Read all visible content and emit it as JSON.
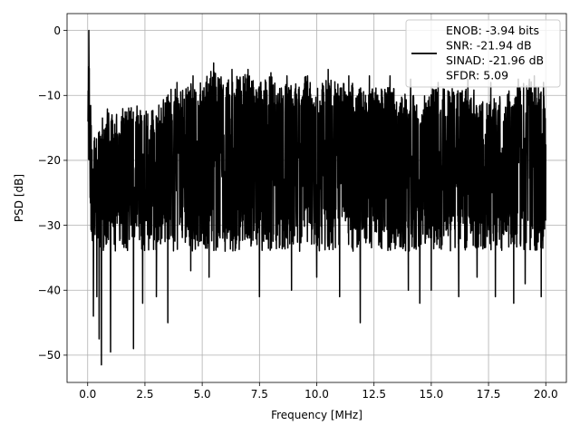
{
  "chart_data": {
    "type": "line",
    "title": "",
    "xlabel": "Frequency [MHz]",
    "ylabel": "PSD [dB]",
    "xlim": [
      -0.9,
      20.9
    ],
    "ylim": [
      -54.2,
      2.6
    ],
    "xticks": [
      0.0,
      2.5,
      5.0,
      7.5,
      10.0,
      12.5,
      15.0,
      17.5,
      20.0
    ],
    "xtick_labels": [
      "0.0",
      "2.5",
      "5.0",
      "7.5",
      "10.0",
      "12.5",
      "15.0",
      "17.5",
      "20.0"
    ],
    "yticks": [
      0,
      -10,
      -20,
      -30,
      -40,
      -50
    ],
    "ytick_labels": [
      "0",
      "−10",
      "−20",
      "−30",
      "−40",
      "−50"
    ],
    "grid": true,
    "legend_position": "top-right",
    "series": [
      {
        "line_color": "#000000",
        "legend_lines": [
          "ENOB: -3.94 bits",
          "SNR: -21.94 dB",
          "SINAD: -21.96 dB",
          "SFDR: 5.09"
        ],
        "x_range": [
          0,
          20
        ],
        "peak": [
          0.05,
          0
        ],
        "x": [
          0.0,
          0.05,
          0.1,
          0.2,
          0.3,
          0.4,
          0.5,
          0.6,
          0.7,
          0.85,
          1.0,
          1.5,
          2.0,
          2.5,
          3.0,
          3.5,
          4.0,
          4.5,
          5.0,
          5.5,
          6.0,
          6.5,
          7.0,
          7.5,
          8.0,
          8.5,
          9.0,
          9.5,
          10.0,
          10.5,
          11.0,
          11.5,
          12.0,
          12.5,
          13.0,
          13.5,
          14.0,
          14.5,
          15.0,
          15.5,
          16.0,
          16.5,
          17.0,
          17.5,
          18.0,
          18.5,
          19.0,
          19.5,
          20.0
        ],
        "upper": [
          -14,
          0,
          -10,
          -13,
          -16,
          -14,
          -15,
          -13,
          -14,
          -12,
          -13,
          -12,
          -11,
          -12,
          -12,
          -9,
          -9,
          -8,
          -7,
          -6,
          -7,
          -7,
          -6,
          -8,
          -7,
          -8,
          -8,
          -7,
          -9,
          -7,
          -8,
          -8,
          -9,
          -9,
          -8,
          -9,
          -10,
          -10,
          -9,
          -9,
          -8,
          -9,
          -9,
          -10,
          -10,
          -9,
          -8,
          -7,
          -10
        ],
        "lower": [
          -18,
          -20,
          -44,
          -38,
          -41,
          -33,
          -47,
          -51,
          -42,
          -50,
          -40,
          -43,
          -47,
          -42,
          -46,
          -43,
          -39,
          -37,
          -39,
          -39,
          -34,
          -38,
          -37,
          -38,
          -40,
          -39,
          -41,
          -38,
          -38,
          -42,
          -42,
          -37,
          -45,
          -40,
          -43,
          -42,
          -41,
          -43,
          -41,
          -39,
          -38,
          -43,
          -37,
          -39,
          -40,
          -41,
          -39,
          -40,
          -38
        ],
        "dips": [
          [
            0.25,
            -44
          ],
          [
            0.5,
            -47.5
          ],
          [
            0.6,
            -51.5
          ],
          [
            1.0,
            -49.5
          ],
          [
            0.4,
            -41
          ],
          [
            2.0,
            -49
          ],
          [
            2.4,
            -42
          ],
          [
            3.5,
            -45
          ],
          [
            3.0,
            -41
          ],
          [
            4.5,
            -37
          ],
          [
            5.3,
            -38
          ],
          [
            6.0,
            -34
          ],
          [
            7.5,
            -41
          ],
          [
            8.0,
            -42
          ],
          [
            8.9,
            -40
          ],
          [
            10.0,
            -38
          ],
          [
            10.5,
            -39
          ],
          [
            11.0,
            -41
          ],
          [
            11.9,
            -45
          ],
          [
            13.2,
            -43
          ],
          [
            14.0,
            -40
          ],
          [
            14.5,
            -42
          ],
          [
            15.0,
            -40
          ],
          [
            16.2,
            -41
          ],
          [
            17.0,
            -38
          ],
          [
            17.8,
            -41
          ],
          [
            18.6,
            -42
          ],
          [
            19.1,
            -39
          ],
          [
            19.8,
            -41
          ]
        ],
        "spikes": [
          [
            3.9,
            -8
          ],
          [
            4.6,
            -7
          ],
          [
            5.5,
            -5
          ],
          [
            6.3,
            -6
          ],
          [
            7.0,
            -6
          ],
          [
            8.0,
            -6.5
          ],
          [
            8.7,
            -7
          ],
          [
            9.6,
            -7
          ],
          [
            10.5,
            -6
          ],
          [
            11.4,
            -7
          ],
          [
            12.3,
            -7
          ],
          [
            13.2,
            -7
          ],
          [
            14.1,
            -7.5
          ],
          [
            15.3,
            -8
          ],
          [
            16.6,
            -7.5
          ],
          [
            17.6,
            -8
          ],
          [
            18.8,
            -7.5
          ],
          [
            19.5,
            -7
          ],
          [
            19.9,
            -8
          ]
        ]
      }
    ]
  }
}
